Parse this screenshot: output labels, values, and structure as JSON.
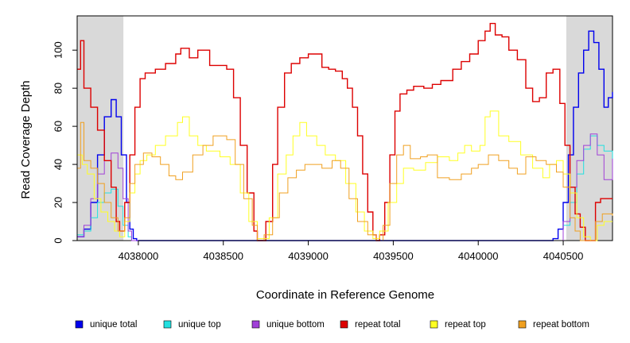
{
  "chart_data": {
    "type": "line",
    "title": "",
    "xlabel": "Coordinate in Reference Genome",
    "ylabel": "Read Coverage Depth",
    "xlim": [
      4037640,
      4040790
    ],
    "ylim": [
      0,
      118
    ],
    "xticks": [
      4038000,
      4038500,
      4039000,
      4039500,
      4040000,
      4040500
    ],
    "yticks": [
      0,
      20,
      40,
      60,
      80,
      100
    ],
    "shaded_regions": [
      [
        4037640,
        4037912
      ],
      [
        4040518,
        4040790
      ]
    ],
    "series": [
      {
        "name": "unique total",
        "color": "#0000ee",
        "width": 1.4,
        "points": [
          [
            4037640,
            2
          ],
          [
            4037680,
            6
          ],
          [
            4037720,
            20
          ],
          [
            4037760,
            45
          ],
          [
            4037800,
            65
          ],
          [
            4037840,
            74
          ],
          [
            4037870,
            65
          ],
          [
            4037900,
            45
          ],
          [
            4037930,
            20
          ],
          [
            4037950,
            6
          ],
          [
            4037970,
            1
          ],
          [
            4037990,
            0
          ],
          [
            4040400,
            0
          ],
          [
            4040440,
            1
          ],
          [
            4040470,
            6
          ],
          [
            4040500,
            20
          ],
          [
            4040530,
            45
          ],
          [
            4040560,
            70
          ],
          [
            4040590,
            88
          ],
          [
            4040620,
            100
          ],
          [
            4040650,
            110
          ],
          [
            4040680,
            104
          ],
          [
            4040710,
            90
          ],
          [
            4040740,
            70
          ],
          [
            4040765,
            75
          ],
          [
            4040790,
            78
          ]
        ]
      },
      {
        "name": "unique top",
        "color": "#22e0e0",
        "width": 1,
        "points": [
          [
            4037640,
            3
          ],
          [
            4037680,
            5
          ],
          [
            4037720,
            12
          ],
          [
            4037760,
            20
          ],
          [
            4037800,
            25
          ],
          [
            4037840,
            27
          ],
          [
            4037880,
            18
          ],
          [
            4037910,
            8
          ],
          [
            4037940,
            2
          ],
          [
            4037960,
            0
          ],
          [
            4040460,
            0
          ],
          [
            4040500,
            8
          ],
          [
            4040540,
            20
          ],
          [
            4040580,
            35
          ],
          [
            4040620,
            48
          ],
          [
            4040660,
            55
          ],
          [
            4040700,
            50
          ],
          [
            4040740,
            47
          ],
          [
            4040790,
            35
          ]
        ]
      },
      {
        "name": "unique bottom",
        "color": "#a040d8",
        "width": 1,
        "points": [
          [
            4037640,
            2
          ],
          [
            4037680,
            8
          ],
          [
            4037720,
            22
          ],
          [
            4037760,
            35
          ],
          [
            4037800,
            42
          ],
          [
            4037840,
            46
          ],
          [
            4037880,
            38
          ],
          [
            4037910,
            22
          ],
          [
            4037940,
            5
          ],
          [
            4037960,
            0
          ],
          [
            4040460,
            0
          ],
          [
            4040500,
            10
          ],
          [
            4040540,
            28
          ],
          [
            4040580,
            42
          ],
          [
            4040620,
            50
          ],
          [
            4040660,
            56
          ],
          [
            4040700,
            45
          ],
          [
            4040740,
            32
          ],
          [
            4040790,
            43
          ]
        ]
      },
      {
        "name": "repeat total",
        "color": "#dd0000",
        "width": 1.4,
        "points": [
          [
            4037640,
            90
          ],
          [
            4037660,
            105
          ],
          [
            4037680,
            80
          ],
          [
            4037720,
            70
          ],
          [
            4037760,
            58
          ],
          [
            4037800,
            42
          ],
          [
            4037840,
            28
          ],
          [
            4037870,
            10
          ],
          [
            4037890,
            5
          ],
          [
            4037920,
            20
          ],
          [
            4037950,
            45
          ],
          [
            4037980,
            70
          ],
          [
            4038010,
            85
          ],
          [
            4038040,
            88
          ],
          [
            4038100,
            90
          ],
          [
            4038160,
            93
          ],
          [
            4038220,
            98
          ],
          [
            4038250,
            101
          ],
          [
            4038300,
            96
          ],
          [
            4038350,
            100
          ],
          [
            4038420,
            92
          ],
          [
            4038480,
            92
          ],
          [
            4038520,
            90
          ],
          [
            4038560,
            75
          ],
          [
            4038600,
            50
          ],
          [
            4038640,
            25
          ],
          [
            4038680,
            5
          ],
          [
            4038700,
            0
          ],
          [
            4038720,
            0
          ],
          [
            4038750,
            10
          ],
          [
            4038790,
            40
          ],
          [
            4038820,
            70
          ],
          [
            4038860,
            88
          ],
          [
            4038900,
            93
          ],
          [
            4038950,
            96
          ],
          [
            4039000,
            98
          ],
          [
            4039050,
            98
          ],
          [
            4039080,
            91
          ],
          [
            4039120,
            90
          ],
          [
            4039160,
            89
          ],
          [
            4039200,
            85
          ],
          [
            4039230,
            80
          ],
          [
            4039260,
            70
          ],
          [
            4039290,
            55
          ],
          [
            4039320,
            35
          ],
          [
            4039350,
            15
          ],
          [
            4039380,
            3
          ],
          [
            4039400,
            0
          ],
          [
            4039420,
            3
          ],
          [
            4039450,
            20
          ],
          [
            4039480,
            45
          ],
          [
            4039510,
            68
          ],
          [
            4039540,
            77
          ],
          [
            4039580,
            79
          ],
          [
            4039620,
            81
          ],
          [
            4039680,
            80
          ],
          [
            4039730,
            82
          ],
          [
            4039780,
            84
          ],
          [
            4039850,
            90
          ],
          [
            4039900,
            94
          ],
          [
            4039950,
            98
          ],
          [
            4040000,
            105
          ],
          [
            4040040,
            110
          ],
          [
            4040070,
            114
          ],
          [
            4040100,
            108
          ],
          [
            4040140,
            107
          ],
          [
            4040180,
            100
          ],
          [
            4040230,
            95
          ],
          [
            4040280,
            80
          ],
          [
            4040320,
            73
          ],
          [
            4040360,
            75
          ],
          [
            4040400,
            88
          ],
          [
            4040440,
            90
          ],
          [
            4040480,
            72
          ],
          [
            4040510,
            50
          ],
          [
            4040540,
            28
          ],
          [
            4040570,
            14
          ],
          [
            4040600,
            7
          ],
          [
            4040630,
            0
          ],
          [
            4040660,
            0
          ],
          [
            4040690,
            20
          ],
          [
            4040720,
            22
          ],
          [
            4040760,
            22
          ],
          [
            4040790,
            22
          ]
        ]
      },
      {
        "name": "repeat top",
        "color": "#ffff22",
        "width": 1,
        "points": [
          [
            4037640,
            45
          ],
          [
            4037670,
            40
          ],
          [
            4037700,
            35
          ],
          [
            4037740,
            22
          ],
          [
            4037780,
            15
          ],
          [
            4037820,
            10
          ],
          [
            4037860,
            5
          ],
          [
            4037890,
            2
          ],
          [
            4037920,
            10
          ],
          [
            4037950,
            25
          ],
          [
            4037980,
            35
          ],
          [
            4038010,
            42
          ],
          [
            4038050,
            45
          ],
          [
            4038100,
            50
          ],
          [
            4038160,
            55
          ],
          [
            4038230,
            62
          ],
          [
            4038260,
            65
          ],
          [
            4038300,
            55
          ],
          [
            4038350,
            50
          ],
          [
            4038400,
            47
          ],
          [
            4038480,
            44
          ],
          [
            4038540,
            40
          ],
          [
            4038600,
            25
          ],
          [
            4038650,
            10
          ],
          [
            4038700,
            1
          ],
          [
            4038730,
            1
          ],
          [
            4038770,
            12
          ],
          [
            4038820,
            35
          ],
          [
            4038870,
            45
          ],
          [
            4038910,
            55
          ],
          [
            4038950,
            62
          ],
          [
            4038990,
            55
          ],
          [
            4039050,
            50
          ],
          [
            4039100,
            45
          ],
          [
            4039160,
            42
          ],
          [
            4039220,
            30
          ],
          [
            4039280,
            15
          ],
          [
            4039330,
            5
          ],
          [
            4039380,
            1
          ],
          [
            4039420,
            5
          ],
          [
            4039470,
            20
          ],
          [
            4039520,
            30
          ],
          [
            4039560,
            38
          ],
          [
            4039620,
            37
          ],
          [
            4039690,
            41
          ],
          [
            4039760,
            44
          ],
          [
            4039830,
            42
          ],
          [
            4039880,
            46
          ],
          [
            4039920,
            50
          ],
          [
            4039960,
            47
          ],
          [
            4040010,
            50
          ],
          [
            4040040,
            65
          ],
          [
            4040070,
            68
          ],
          [
            4040120,
            55
          ],
          [
            4040180,
            52
          ],
          [
            4040250,
            45
          ],
          [
            4040320,
            38
          ],
          [
            4040380,
            33
          ],
          [
            4040420,
            40
          ],
          [
            4040460,
            42
          ],
          [
            4040500,
            35
          ],
          [
            4040540,
            25
          ],
          [
            4040580,
            12
          ],
          [
            4040620,
            2
          ],
          [
            4040660,
            0
          ],
          [
            4040700,
            8
          ],
          [
            4040740,
            10
          ],
          [
            4040790,
            10
          ]
        ]
      },
      {
        "name": "repeat bottom",
        "color": "#f0a020",
        "width": 1,
        "points": [
          [
            4037640,
            38
          ],
          [
            4037660,
            62
          ],
          [
            4037680,
            42
          ],
          [
            4037720,
            38
          ],
          [
            4037760,
            30
          ],
          [
            4037800,
            20
          ],
          [
            4037840,
            12
          ],
          [
            4037880,
            5
          ],
          [
            4037920,
            12
          ],
          [
            4037950,
            30
          ],
          [
            4037980,
            40
          ],
          [
            4038030,
            46
          ],
          [
            4038080,
            44
          ],
          [
            4038130,
            40
          ],
          [
            4038180,
            34
          ],
          [
            4038220,
            32
          ],
          [
            4038260,
            36
          ],
          [
            4038320,
            45
          ],
          [
            4038380,
            50
          ],
          [
            4038440,
            55
          ],
          [
            4038480,
            55
          ],
          [
            4038520,
            53
          ],
          [
            4038570,
            40
          ],
          [
            4038620,
            22
          ],
          [
            4038670,
            8
          ],
          [
            4038700,
            0
          ],
          [
            4038740,
            3
          ],
          [
            4038790,
            12
          ],
          [
            4038830,
            25
          ],
          [
            4038880,
            33
          ],
          [
            4038930,
            37
          ],
          [
            4038980,
            40
          ],
          [
            4039030,
            40
          ],
          [
            4039080,
            38
          ],
          [
            4039140,
            42
          ],
          [
            4039190,
            38
          ],
          [
            4039240,
            22
          ],
          [
            4039290,
            10
          ],
          [
            4039350,
            3
          ],
          [
            4039400,
            0
          ],
          [
            4039440,
            8
          ],
          [
            4039480,
            30
          ],
          [
            4039520,
            45
          ],
          [
            4039560,
            50
          ],
          [
            4039600,
            43
          ],
          [
            4039660,
            44
          ],
          [
            4039700,
            45
          ],
          [
            4039760,
            33
          ],
          [
            4039830,
            32
          ],
          [
            4039900,
            35
          ],
          [
            4039960,
            38
          ],
          [
            4040000,
            40
          ],
          [
            4040060,
            45
          ],
          [
            4040120,
            42
          ],
          [
            4040180,
            38
          ],
          [
            4040230,
            35
          ],
          [
            4040280,
            44
          ],
          [
            4040340,
            42
          ],
          [
            4040400,
            40
          ],
          [
            4040460,
            36
          ],
          [
            4040500,
            28
          ],
          [
            4040540,
            12
          ],
          [
            4040570,
            5
          ],
          [
            4040600,
            0
          ],
          [
            4040650,
            0
          ],
          [
            4040690,
            10
          ],
          [
            4040730,
            14
          ],
          [
            4040790,
            13
          ]
        ]
      }
    ]
  }
}
